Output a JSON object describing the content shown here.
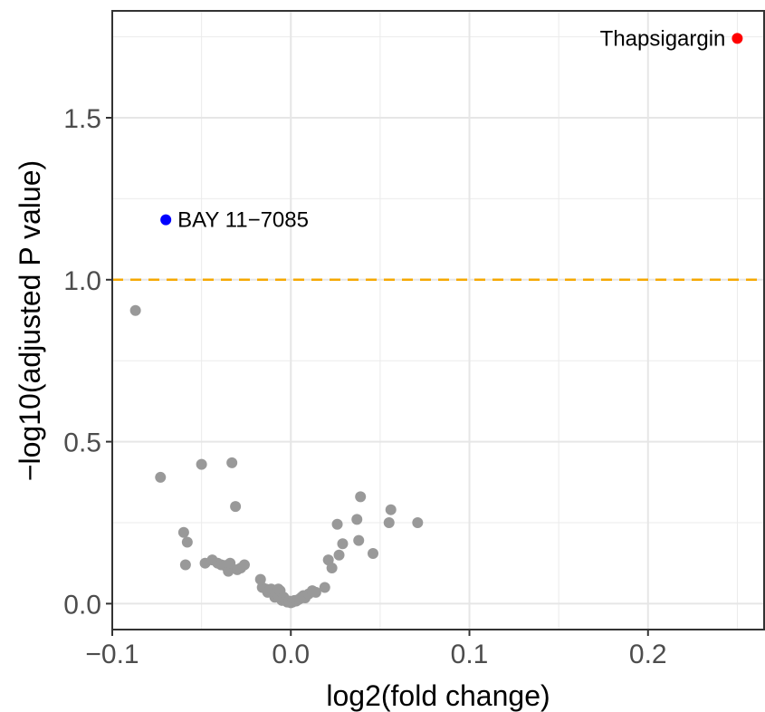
{
  "chart_data": {
    "type": "scatter",
    "title": "",
    "xlabel": "log2(fold change)",
    "ylabel": "−log10(adjusted P value)",
    "xlim": [
      -0.1,
      0.265
    ],
    "ylim": [
      -0.08,
      1.83
    ],
    "x_ticks": [
      -0.1,
      0.0,
      0.1,
      0.2
    ],
    "x_tick_labels": [
      "−0.1",
      "0.0",
      "0.1",
      "0.2"
    ],
    "y_ticks": [
      0.0,
      0.5,
      1.0,
      1.5
    ],
    "y_tick_labels": [
      "0.0",
      "0.5",
      "1.0",
      "1.5"
    ],
    "grid": true,
    "threshold": {
      "y": 1.0,
      "color": "#f5a800",
      "style": "dashed"
    },
    "colors": {
      "default": "#999999",
      "up": "#ff0000",
      "down": "#0000ff"
    },
    "labeled_points": [
      {
        "label": "Thapsigargin",
        "x": 0.25,
        "y": 1.745,
        "color": "#ff0000",
        "label_side": "left"
      },
      {
        "label": "BAY 11−7085",
        "x": -0.07,
        "y": 1.185,
        "color": "#0000ff",
        "label_side": "right"
      }
    ],
    "points": [
      [
        -0.087,
        0.905
      ],
      [
        -0.073,
        0.39
      ],
      [
        -0.05,
        0.43
      ],
      [
        -0.033,
        0.435
      ],
      [
        -0.031,
        0.3
      ],
      [
        -0.06,
        0.22
      ],
      [
        -0.058,
        0.19
      ],
      [
        -0.059,
        0.12
      ],
      [
        -0.048,
        0.125
      ],
      [
        -0.044,
        0.135
      ],
      [
        -0.041,
        0.125
      ],
      [
        -0.039,
        0.12
      ],
      [
        -0.037,
        0.118
      ],
      [
        -0.035,
        0.1
      ],
      [
        -0.034,
        0.125
      ],
      [
        -0.03,
        0.105
      ],
      [
        -0.028,
        0.11
      ],
      [
        -0.026,
        0.12
      ],
      [
        -0.017,
        0.075
      ],
      [
        -0.016,
        0.05
      ],
      [
        -0.014,
        0.045
      ],
      [
        -0.013,
        0.035
      ],
      [
        -0.012,
        0.04
      ],
      [
        -0.011,
        0.045
      ],
      [
        -0.01,
        0.035
      ],
      [
        -0.009,
        0.02
      ],
      [
        -0.008,
        0.03
      ],
      [
        -0.007,
        0.045
      ],
      [
        -0.006,
        0.04
      ],
      [
        -0.005,
        0.01
      ],
      [
        -0.004,
        0.02
      ],
      [
        -0.003,
        0.01
      ],
      [
        -0.002,
        0.005
      ],
      [
        -0.001,
        0.008
      ],
      [
        0.0,
        0.003
      ],
      [
        0.001,
        0.005
      ],
      [
        0.002,
        0.01
      ],
      [
        0.003,
        0.008
      ],
      [
        0.004,
        0.012
      ],
      [
        0.005,
        0.015
      ],
      [
        0.006,
        0.02
      ],
      [
        0.007,
        0.025
      ],
      [
        0.008,
        0.018
      ],
      [
        0.01,
        0.03
      ],
      [
        0.012,
        0.04
      ],
      [
        0.014,
        0.035
      ],
      [
        0.019,
        0.05
      ],
      [
        0.021,
        0.135
      ],
      [
        0.023,
        0.11
      ],
      [
        0.026,
        0.245
      ],
      [
        0.027,
        0.15
      ],
      [
        0.029,
        0.185
      ],
      [
        0.037,
        0.26
      ],
      [
        0.038,
        0.195
      ],
      [
        0.039,
        0.33
      ],
      [
        0.046,
        0.155
      ],
      [
        0.055,
        0.25
      ],
      [
        0.056,
        0.29
      ],
      [
        0.071,
        0.25
      ]
    ]
  }
}
